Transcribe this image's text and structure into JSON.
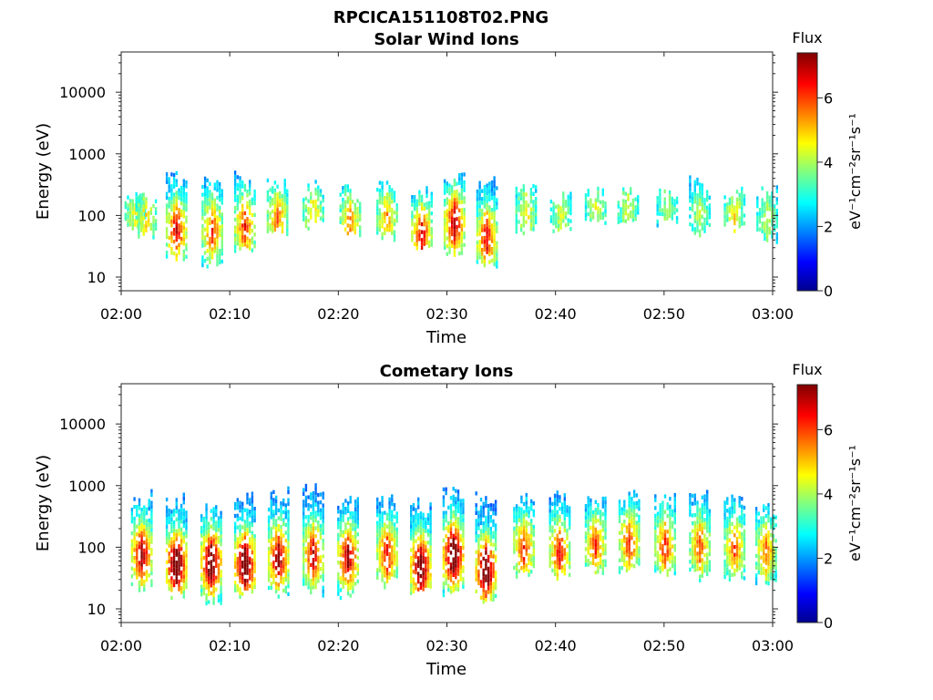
{
  "figure_title": "RPCICA151108T02.PNG",
  "chart_data": [
    {
      "type": "heatmap",
      "title": "Solar Wind Ions",
      "xlabel": "Time",
      "ylabel": "Energy (eV)",
      "x_ticks": [
        "02:00",
        "02:10",
        "02:20",
        "02:30",
        "02:40",
        "02:50",
        "03:00"
      ],
      "x_range_minutes": [
        0,
        60
      ],
      "y_ticks": [
        "10",
        "100",
        "1000",
        "10000"
      ],
      "y_scale": "log",
      "y_range": [
        6,
        45000
      ],
      "colorbar": {
        "label_top": "Flux",
        "label": "eV⁻¹cm⁻²sr⁻¹s⁻¹",
        "ticks": [
          "0",
          "2",
          "4",
          "6"
        ],
        "range": [
          0,
          7.4
        ],
        "colormap": "jet"
      },
      "sweeps": [
        {
          "t": 1.2,
          "elo": 60,
          "ehi": 250,
          "peak": 2.8,
          "pE": 100
        },
        {
          "t": 2.2,
          "elo": 45,
          "ehi": 220,
          "peak": 3.2,
          "pE": 90
        },
        {
          "t": 5.0,
          "elo": 18,
          "ehi": 550,
          "peak": 5.0,
          "pE": 60
        },
        {
          "t": 8.3,
          "elo": 12,
          "ehi": 500,
          "peak": 4.5,
          "pE": 60
        },
        {
          "t": 11.3,
          "elo": 25,
          "ehi": 500,
          "peak": 4.6,
          "pE": 70
        },
        {
          "t": 14.3,
          "elo": 45,
          "ehi": 400,
          "peak": 4.0,
          "pE": 90
        },
        {
          "t": 17.6,
          "elo": 60,
          "ehi": 350,
          "peak": 3.2,
          "pE": 100
        },
        {
          "t": 21.0,
          "elo": 45,
          "ehi": 300,
          "peak": 3.8,
          "pE": 80
        },
        {
          "t": 24.4,
          "elo": 40,
          "ehi": 350,
          "peak": 3.6,
          "pE": 90
        },
        {
          "t": 27.6,
          "elo": 25,
          "ehi": 280,
          "peak": 5.0,
          "pE": 50
        },
        {
          "t": 30.6,
          "elo": 20,
          "ehi": 500,
          "peak": 5.4,
          "pE": 80
        },
        {
          "t": 33.6,
          "elo": 15,
          "ehi": 400,
          "peak": 5.0,
          "pE": 45
        },
        {
          "t": 37.2,
          "elo": 50,
          "ehi": 300,
          "peak": 3.0,
          "pE": 110
        },
        {
          "t": 40.4,
          "elo": 50,
          "ehi": 250,
          "peak": 2.6,
          "pE": 110
        },
        {
          "t": 43.6,
          "elo": 60,
          "ehi": 280,
          "peak": 2.6,
          "pE": 130
        },
        {
          "t": 46.6,
          "elo": 60,
          "ehi": 280,
          "peak": 2.6,
          "pE": 130
        },
        {
          "t": 50.2,
          "elo": 70,
          "ehi": 250,
          "peak": 2.3,
          "pE": 130
        },
        {
          "t": 53.2,
          "elo": 45,
          "ehi": 450,
          "peak": 2.4,
          "pE": 110
        },
        {
          "t": 56.4,
          "elo": 55,
          "ehi": 300,
          "peak": 3.0,
          "pE": 100
        },
        {
          "t": 59.4,
          "elo": 35,
          "ehi": 300,
          "peak": 2.4,
          "pE": 100
        }
      ]
    },
    {
      "type": "heatmap",
      "title": "Cometary Ions",
      "xlabel": "Time",
      "ylabel": "Energy (eV)",
      "x_ticks": [
        "02:00",
        "02:10",
        "02:20",
        "02:30",
        "02:40",
        "02:50",
        "03:00"
      ],
      "x_range_minutes": [
        0,
        60
      ],
      "y_ticks": [
        "10",
        "100",
        "1000",
        "10000"
      ],
      "y_scale": "log",
      "y_range": [
        6,
        45000
      ],
      "colorbar": {
        "label_top": "Flux",
        "label": "eV⁻¹cm⁻²sr⁻¹s⁻¹",
        "ticks": [
          "0",
          "2",
          "4",
          "6"
        ],
        "range": [
          0,
          7.4
        ],
        "colormap": "jet"
      },
      "sweeps": [
        {
          "t": 1.8,
          "elo": 20,
          "ehi": 800,
          "peak": 5.6,
          "pE": 80
        },
        {
          "t": 5.0,
          "elo": 15,
          "ehi": 700,
          "peak": 6.8,
          "pE": 55
        },
        {
          "t": 8.2,
          "elo": 12,
          "ehi": 600,
          "peak": 6.6,
          "pE": 60
        },
        {
          "t": 11.3,
          "elo": 15,
          "ehi": 800,
          "peak": 6.8,
          "pE": 55
        },
        {
          "t": 14.4,
          "elo": 15,
          "ehi": 900,
          "peak": 5.8,
          "pE": 70
        },
        {
          "t": 17.6,
          "elo": 15,
          "ehi": 1000,
          "peak": 5.2,
          "pE": 80
        },
        {
          "t": 20.8,
          "elo": 15,
          "ehi": 700,
          "peak": 5.6,
          "pE": 70
        },
        {
          "t": 24.4,
          "elo": 20,
          "ehi": 700,
          "peak": 5.0,
          "pE": 80
        },
        {
          "t": 27.5,
          "elo": 15,
          "ehi": 600,
          "peak": 6.4,
          "pE": 50
        },
        {
          "t": 30.5,
          "elo": 15,
          "ehi": 900,
          "peak": 6.9,
          "pE": 80
        },
        {
          "t": 33.5,
          "elo": 12,
          "ehi": 800,
          "peak": 6.6,
          "pE": 45
        },
        {
          "t": 37.0,
          "elo": 30,
          "ehi": 700,
          "peak": 4.6,
          "pE": 100
        },
        {
          "t": 40.3,
          "elo": 30,
          "ehi": 800,
          "peak": 4.8,
          "pE": 90
        },
        {
          "t": 43.6,
          "elo": 35,
          "ehi": 700,
          "peak": 4.4,
          "pE": 110
        },
        {
          "t": 46.7,
          "elo": 35,
          "ehi": 800,
          "peak": 4.6,
          "pE": 120
        },
        {
          "t": 50.0,
          "elo": 35,
          "ehi": 700,
          "peak": 4.6,
          "pE": 110
        },
        {
          "t": 53.2,
          "elo": 30,
          "ehi": 800,
          "peak": 4.2,
          "pE": 110
        },
        {
          "t": 56.4,
          "elo": 30,
          "ehi": 700,
          "peak": 4.2,
          "pE": 100
        },
        {
          "t": 59.3,
          "elo": 25,
          "ehi": 500,
          "peak": 4.0,
          "pE": 90
        }
      ]
    }
  ]
}
